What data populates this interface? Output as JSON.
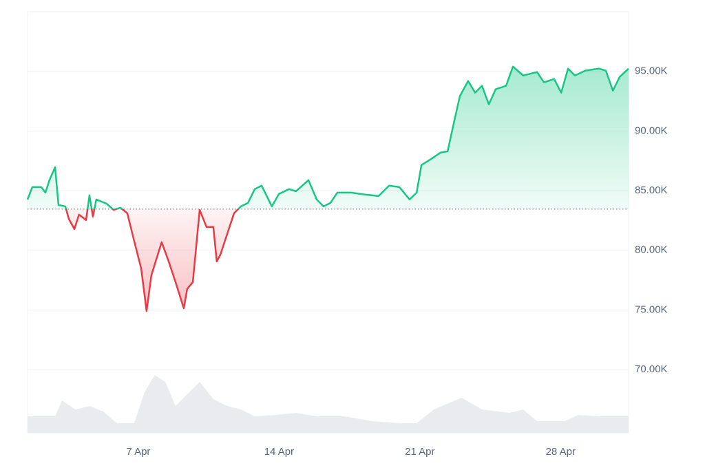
{
  "chart_data": {
    "type": "line",
    "x": [
      1.49,
      1.73,
      2.17,
      2.38,
      2.58,
      2.86,
      3.03,
      3.37,
      3.54,
      3.82,
      4.05,
      4.4,
      4.57,
      4.74,
      4.91,
      5.42,
      5.77,
      6.11,
      6.45,
      6.79,
      7.14,
      7.41,
      7.65,
      7.86,
      8.16,
      8.51,
      8.85,
      9.26,
      9.43,
      9.71,
      10.05,
      10.39,
      10.73,
      10.9,
      11.08,
      11.42,
      11.76,
      12.1,
      12.45,
      12.79,
      13.13,
      13.64,
      13.99,
      14.5,
      14.84,
      15.46,
      15.87,
      16.21,
      16.55,
      16.9,
      17.58,
      18.27,
      18.95,
      19.47,
      19.98,
      20.49,
      20.84,
      21.08,
      21.52,
      22.03,
      22.38,
      22.72,
      22.99,
      23.4,
      23.75,
      24.09,
      24.43,
      24.77,
      25.29,
      25.63,
      26.14,
      26.83,
      27.17,
      27.68,
      28.03,
      28.37,
      28.71,
      29.23,
      29.91,
      30.25,
      30.6,
      30.94,
      31.38
    ],
    "values": [
      84260,
      85300,
      85300,
      84840,
      85880,
      86970,
      83800,
      83680,
      82640,
      81780,
      82990,
      82530,
      84610,
      82820,
      84260,
      83910,
      83390,
      83570,
      83110,
      80800,
      78490,
      74910,
      77910,
      79060,
      80680,
      79060,
      77330,
      75140,
      76760,
      77330,
      83390,
      81950,
      81950,
      79060,
      79640,
      81370,
      83110,
      83680,
      83970,
      85130,
      85420,
      83680,
      84720,
      85130,
      84950,
      85880,
      84260,
      83680,
      83970,
      84840,
      84840,
      84670,
      84550,
      85420,
      85300,
      84260,
      84840,
      87150,
      87610,
      88190,
      88300,
      90900,
      92920,
      94190,
      93210,
      93790,
      92230,
      93500,
      93790,
      95400,
      94650,
      94940,
      94080,
      94360,
      93210,
      95230,
      94650,
      95060,
      95230,
      95060,
      93380,
      94540,
      95230
    ],
    "baseline": 83450,
    "up_color": "#16c784",
    "down_color": "#ea3943",
    "volume_x": [
      1.49,
      2.86,
      3.2,
      3.88,
      4.57,
      5.25,
      5.94,
      6.79,
      7.31,
      7.82,
      8.34,
      8.85,
      9.36,
      10.05,
      10.73,
      11.42,
      12.1,
      12.79,
      13.82,
      14.84,
      15.87,
      17.24,
      18.61,
      19.98,
      20.84,
      21.7,
      23.07,
      24.09,
      25.46,
      26.14,
      26.83,
      28.2,
      28.88,
      29.91,
      31.38
    ],
    "volume_values": [
      24,
      24,
      47,
      34,
      39,
      31,
      14,
      14,
      59,
      84,
      74,
      39,
      54,
      74,
      49,
      39,
      34,
      24,
      26,
      29,
      24,
      24,
      17,
      14,
      14,
      34,
      51,
      34,
      29,
      34,
      17,
      17,
      26,
      24,
      24
    ],
    "volume_color": "#e9ebee",
    "y2lim": [
      0,
      612
    ],
    "xlim": [
      1.49,
      31.38
    ],
    "xticks": [
      {
        "value": 7,
        "label": "7 Apr"
      },
      {
        "value": 14,
        "label": "14 Apr"
      },
      {
        "value": 21,
        "label": "21 Apr"
      },
      {
        "value": 28,
        "label": "28 Apr"
      }
    ],
    "ylim": [
      64700,
      100000
    ],
    "yticks": [
      {
        "value": 70000,
        "label": "70.00K"
      },
      {
        "value": 75000,
        "label": "75.00K"
      },
      {
        "value": 80000,
        "label": "80.00K"
      },
      {
        "value": 85000,
        "label": "85.00K"
      },
      {
        "value": 90000,
        "label": "90.00K"
      },
      {
        "value": 95000,
        "label": "95.00K"
      }
    ],
    "grid": true
  }
}
